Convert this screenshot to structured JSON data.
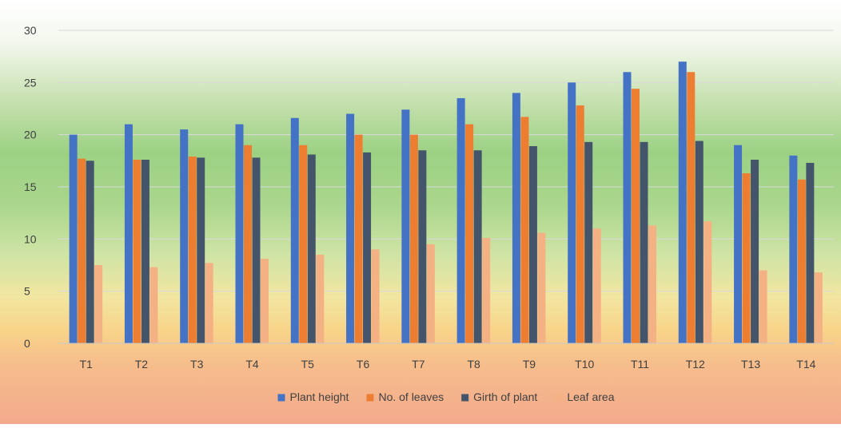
{
  "chart_data": {
    "type": "bar",
    "title": "",
    "xlabel": "",
    "ylabel": "",
    "categories": [
      "T1",
      "T2",
      "T3",
      "T4",
      "T5",
      "T6",
      "T7",
      "T8",
      "T9",
      "T10",
      "T11",
      "T12",
      "T13",
      "T14"
    ],
    "ylim": [
      0,
      30
    ],
    "yticks": [
      0,
      5,
      10,
      15,
      20,
      25,
      30
    ],
    "grid": true,
    "legend_position": "bottom",
    "series": [
      {
        "name": "Plant height",
        "color": "#4472C4",
        "values": [
          20,
          21,
          20.5,
          21,
          21.6,
          22,
          22.4,
          23.5,
          24,
          25,
          26,
          27,
          19,
          18
        ]
      },
      {
        "name": "No. of leaves",
        "color": "#ED7D31",
        "values": [
          17.7,
          17.6,
          17.9,
          19,
          19,
          20,
          20,
          21,
          21.7,
          22.8,
          24.4,
          26,
          16.3,
          15.7
        ]
      },
      {
        "name": "Girth of plant",
        "color": "#44546A",
        "values": [
          17.5,
          17.6,
          17.8,
          17.8,
          18.1,
          18.3,
          18.5,
          18.5,
          18.9,
          19.3,
          19.3,
          19.4,
          17.6,
          17.3
        ]
      },
      {
        "name": "Leaf area",
        "color": "#F4B183",
        "values": [
          7.5,
          7.3,
          7.7,
          8.1,
          8.5,
          9,
          9.5,
          10.1,
          10.6,
          11,
          11.3,
          11.7,
          7,
          6.8
        ]
      }
    ]
  }
}
